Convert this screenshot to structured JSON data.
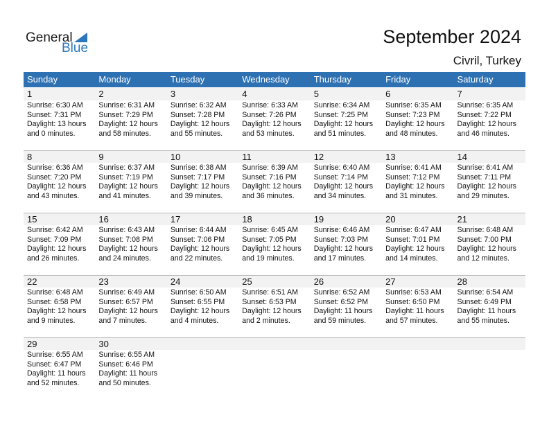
{
  "logo": {
    "line1": "General",
    "line2": "Blue"
  },
  "title": "September 2024",
  "location": "Civril, Turkey",
  "colors": {
    "header": "#2e71b3",
    "date_row": "#f2f2f2",
    "brand": "#2a77bd"
  },
  "weekdays": [
    "Sunday",
    "Monday",
    "Tuesday",
    "Wednesday",
    "Thursday",
    "Friday",
    "Saturday"
  ],
  "weeks": [
    [
      {
        "d": "1",
        "rise": "Sunrise: 6:30 AM",
        "set": "Sunset: 7:31 PM",
        "day1": "Daylight: 13 hours",
        "day2": "and 0 minutes."
      },
      {
        "d": "2",
        "rise": "Sunrise: 6:31 AM",
        "set": "Sunset: 7:29 PM",
        "day1": "Daylight: 12 hours",
        "day2": "and 58 minutes."
      },
      {
        "d": "3",
        "rise": "Sunrise: 6:32 AM",
        "set": "Sunset: 7:28 PM",
        "day1": "Daylight: 12 hours",
        "day2": "and 55 minutes."
      },
      {
        "d": "4",
        "rise": "Sunrise: 6:33 AM",
        "set": "Sunset: 7:26 PM",
        "day1": "Daylight: 12 hours",
        "day2": "and 53 minutes."
      },
      {
        "d": "5",
        "rise": "Sunrise: 6:34 AM",
        "set": "Sunset: 7:25 PM",
        "day1": "Daylight: 12 hours",
        "day2": "and 51 minutes."
      },
      {
        "d": "6",
        "rise": "Sunrise: 6:35 AM",
        "set": "Sunset: 7:23 PM",
        "day1": "Daylight: 12 hours",
        "day2": "and 48 minutes."
      },
      {
        "d": "7",
        "rise": "Sunrise: 6:35 AM",
        "set": "Sunset: 7:22 PM",
        "day1": "Daylight: 12 hours",
        "day2": "and 46 minutes."
      }
    ],
    [
      {
        "d": "8",
        "rise": "Sunrise: 6:36 AM",
        "set": "Sunset: 7:20 PM",
        "day1": "Daylight: 12 hours",
        "day2": "and 43 minutes."
      },
      {
        "d": "9",
        "rise": "Sunrise: 6:37 AM",
        "set": "Sunset: 7:19 PM",
        "day1": "Daylight: 12 hours",
        "day2": "and 41 minutes."
      },
      {
        "d": "10",
        "rise": "Sunrise: 6:38 AM",
        "set": "Sunset: 7:17 PM",
        "day1": "Daylight: 12 hours",
        "day2": "and 39 minutes."
      },
      {
        "d": "11",
        "rise": "Sunrise: 6:39 AM",
        "set": "Sunset: 7:16 PM",
        "day1": "Daylight: 12 hours",
        "day2": "and 36 minutes."
      },
      {
        "d": "12",
        "rise": "Sunrise: 6:40 AM",
        "set": "Sunset: 7:14 PM",
        "day1": "Daylight: 12 hours",
        "day2": "and 34 minutes."
      },
      {
        "d": "13",
        "rise": "Sunrise: 6:41 AM",
        "set": "Sunset: 7:12 PM",
        "day1": "Daylight: 12 hours",
        "day2": "and 31 minutes."
      },
      {
        "d": "14",
        "rise": "Sunrise: 6:41 AM",
        "set": "Sunset: 7:11 PM",
        "day1": "Daylight: 12 hours",
        "day2": "and 29 minutes."
      }
    ],
    [
      {
        "d": "15",
        "rise": "Sunrise: 6:42 AM",
        "set": "Sunset: 7:09 PM",
        "day1": "Daylight: 12 hours",
        "day2": "and 26 minutes."
      },
      {
        "d": "16",
        "rise": "Sunrise: 6:43 AM",
        "set": "Sunset: 7:08 PM",
        "day1": "Daylight: 12 hours",
        "day2": "and 24 minutes."
      },
      {
        "d": "17",
        "rise": "Sunrise: 6:44 AM",
        "set": "Sunset: 7:06 PM",
        "day1": "Daylight: 12 hours",
        "day2": "and 22 minutes."
      },
      {
        "d": "18",
        "rise": "Sunrise: 6:45 AM",
        "set": "Sunset: 7:05 PM",
        "day1": "Daylight: 12 hours",
        "day2": "and 19 minutes."
      },
      {
        "d": "19",
        "rise": "Sunrise: 6:46 AM",
        "set": "Sunset: 7:03 PM",
        "day1": "Daylight: 12 hours",
        "day2": "and 17 minutes."
      },
      {
        "d": "20",
        "rise": "Sunrise: 6:47 AM",
        "set": "Sunset: 7:01 PM",
        "day1": "Daylight: 12 hours",
        "day2": "and 14 minutes."
      },
      {
        "d": "21",
        "rise": "Sunrise: 6:48 AM",
        "set": "Sunset: 7:00 PM",
        "day1": "Daylight: 12 hours",
        "day2": "and 12 minutes."
      }
    ],
    [
      {
        "d": "22",
        "rise": "Sunrise: 6:48 AM",
        "set": "Sunset: 6:58 PM",
        "day1": "Daylight: 12 hours",
        "day2": "and 9 minutes."
      },
      {
        "d": "23",
        "rise": "Sunrise: 6:49 AM",
        "set": "Sunset: 6:57 PM",
        "day1": "Daylight: 12 hours",
        "day2": "and 7 minutes."
      },
      {
        "d": "24",
        "rise": "Sunrise: 6:50 AM",
        "set": "Sunset: 6:55 PM",
        "day1": "Daylight: 12 hours",
        "day2": "and 4 minutes."
      },
      {
        "d": "25",
        "rise": "Sunrise: 6:51 AM",
        "set": "Sunset: 6:53 PM",
        "day1": "Daylight: 12 hours",
        "day2": "and 2 minutes."
      },
      {
        "d": "26",
        "rise": "Sunrise: 6:52 AM",
        "set": "Sunset: 6:52 PM",
        "day1": "Daylight: 11 hours",
        "day2": "and 59 minutes."
      },
      {
        "d": "27",
        "rise": "Sunrise: 6:53 AM",
        "set": "Sunset: 6:50 PM",
        "day1": "Daylight: 11 hours",
        "day2": "and 57 minutes."
      },
      {
        "d": "28",
        "rise": "Sunrise: 6:54 AM",
        "set": "Sunset: 6:49 PM",
        "day1": "Daylight: 11 hours",
        "day2": "and 55 minutes."
      }
    ],
    [
      {
        "d": "29",
        "rise": "Sunrise: 6:55 AM",
        "set": "Sunset: 6:47 PM",
        "day1": "Daylight: 11 hours",
        "day2": "and 52 minutes."
      },
      {
        "d": "30",
        "rise": "Sunrise: 6:55 AM",
        "set": "Sunset: 6:46 PM",
        "day1": "Daylight: 11 hours",
        "day2": "and 50 minutes."
      }
    ]
  ]
}
